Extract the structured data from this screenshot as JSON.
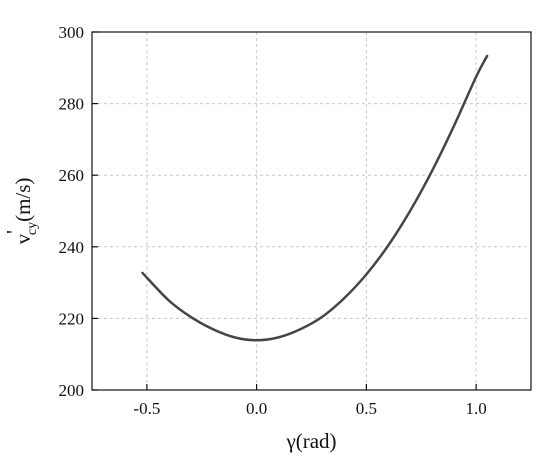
{
  "chart_data": {
    "type": "line",
    "xlabel": "γ(rad)",
    "ylabel": {
      "main": "v",
      "prime": "'",
      "sub": "cy",
      "unit": "(m/s)"
    },
    "xlim": [
      -0.75,
      1.25
    ],
    "ylim": [
      200,
      300
    ],
    "xticks": [
      -0.5,
      0.0,
      0.5,
      1.0
    ],
    "xtick_labels": [
      "-0.5",
      "0.0",
      "0.5",
      "1.0"
    ],
    "yticks": [
      200,
      220,
      240,
      260,
      280,
      300
    ],
    "ytick_labels": [
      "200",
      "220",
      "240",
      "260",
      "280",
      "300"
    ],
    "grid": true,
    "series": [
      {
        "color": "#454545",
        "x": [
          -0.52,
          -0.4,
          -0.3,
          -0.2,
          -0.1,
          0.0,
          0.1,
          0.2,
          0.3,
          0.4,
          0.5,
          0.6,
          0.7,
          0.8,
          0.9,
          1.0,
          1.05
        ],
        "y": [
          232.7,
          225.0,
          220.4,
          217.0,
          214.7,
          213.9,
          214.7,
          217.0,
          220.5,
          225.7,
          232.3,
          240.4,
          250.1,
          261.3,
          273.9,
          287.5,
          293.3
        ]
      }
    ]
  }
}
